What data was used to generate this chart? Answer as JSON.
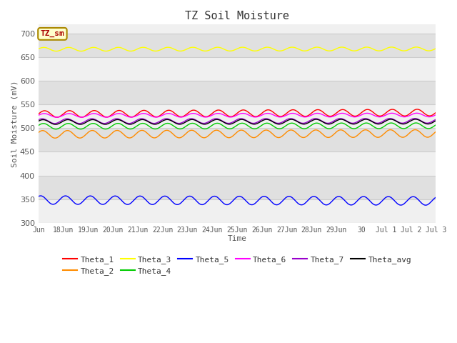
{
  "title": "TZ Soil Moisture",
  "xlabel": "Time",
  "ylabel": "Soil Moisture (mV)",
  "legend_label": "TZ_sm",
  "ylim": [
    300,
    720
  ],
  "yticks": [
    300,
    350,
    400,
    450,
    500,
    550,
    600,
    650,
    700
  ],
  "fig_bg": "#ffffff",
  "plot_bg_light": "#f0f0f0",
  "plot_bg_dark": "#e0e0e0",
  "grid_color": "#cccccc",
  "series": {
    "Theta_1": {
      "color": "#ff0000",
      "base": 530,
      "amplitude": 7,
      "trend": 0.2,
      "phase": 0.0
    },
    "Theta_2": {
      "color": "#ff8c00",
      "base": 487,
      "amplitude": 8,
      "trend": 0.12,
      "phase": 0.5
    },
    "Theta_3": {
      "color": "#ffff00",
      "base": 667,
      "amplitude": 4,
      "trend": 0.05,
      "phase": 0.2
    },
    "Theta_4": {
      "color": "#00cc00",
      "base": 504,
      "amplitude": 6,
      "trend": 0.08,
      "phase": 0.3
    },
    "Theta_5": {
      "color": "#0000ff",
      "base": 348,
      "amplitude": 9,
      "trend": -0.12,
      "phase": 1.0
    },
    "Theta_6": {
      "color": "#ff00ff",
      "base": 527,
      "amplitude": 4,
      "trend": 0.06,
      "phase": 0.1
    },
    "Theta_7": {
      "color": "#9900cc",
      "base": 515,
      "amplitude": 5,
      "trend": 0.05,
      "phase": 0.6
    },
    "Theta_avg": {
      "color": "#000000",
      "base": 513,
      "amplitude": 5,
      "trend": 0.06,
      "phase": 0.4
    }
  },
  "num_points": 500,
  "xtick_labels": [
    "Jun",
    "18Jun",
    "19Jun",
    "20Jun",
    "21Jun",
    "22Jun",
    "23Jun",
    "24Jun",
    "25Jun",
    "26Jun",
    "27Jun",
    "28Jun",
    "29Jun",
    "30",
    "Jul 1",
    "Jul 2",
    "Jul 3"
  ],
  "series_plot_order": [
    "Theta_3",
    "Theta_1",
    "Theta_6",
    "Theta_7",
    "Theta_avg",
    "Theta_4",
    "Theta_2",
    "Theta_5"
  ],
  "legend_order": [
    "Theta_1",
    "Theta_2",
    "Theta_3",
    "Theta_4",
    "Theta_5",
    "Theta_6",
    "Theta_7",
    "Theta_avg"
  ]
}
